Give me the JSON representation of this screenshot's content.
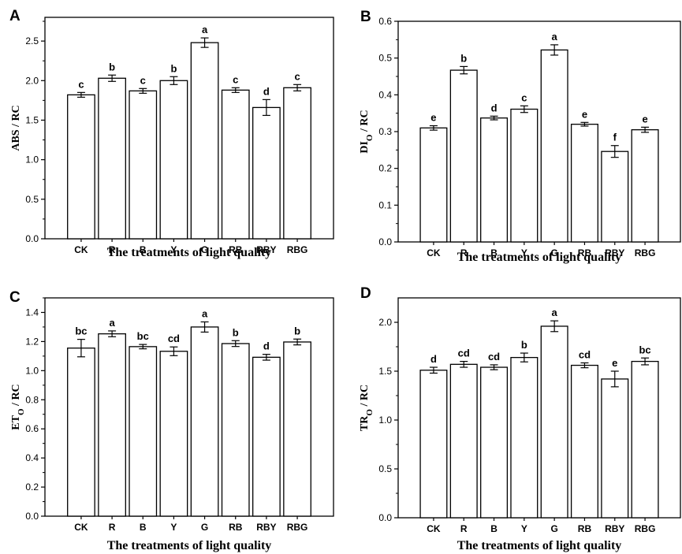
{
  "chart_data": [
    {
      "type": "bar",
      "panel": "A",
      "ylabel": {
        "main": "ABS / RC",
        "sub": ""
      },
      "xlabel": "The treatments of light quality",
      "ylim": [
        0,
        2.8
      ],
      "yticks": [
        "0.0",
        "0.5",
        "1.0",
        "1.5",
        "2.0",
        "2.5"
      ],
      "categories": [
        "CK",
        "R",
        "B",
        "Y",
        "G",
        "RB",
        "RBY",
        "RBG"
      ],
      "values": [
        1.82,
        2.03,
        1.87,
        2.0,
        2.48,
        1.88,
        1.66,
        1.91
      ],
      "errors": [
        0.03,
        0.04,
        0.03,
        0.05,
        0.06,
        0.03,
        0.1,
        0.04
      ],
      "significance": [
        "c",
        "b",
        "c",
        "b",
        "a",
        "c",
        "d",
        "c"
      ]
    },
    {
      "type": "bar",
      "panel": "B",
      "ylabel": {
        "main": "DI",
        "sub": "O",
        "suffix": " / RC"
      },
      "xlabel": "The treatments of light quality",
      "ylim": [
        0,
        0.6
      ],
      "yticks": [
        "0.0",
        "0.1",
        "0.2",
        "0.3",
        "0.4",
        "0.5",
        "0.6"
      ],
      "categories": [
        "CK",
        "R",
        "B",
        "Y",
        "G",
        "RB",
        "RBY",
        "RBG"
      ],
      "values": [
        0.31,
        0.467,
        0.337,
        0.361,
        0.522,
        0.32,
        0.246,
        0.305
      ],
      "errors": [
        0.006,
        0.01,
        0.005,
        0.009,
        0.014,
        0.005,
        0.016,
        0.007
      ],
      "significance": [
        "e",
        "b",
        "d",
        "c",
        "a",
        "e",
        "f",
        "e"
      ]
    },
    {
      "type": "bar",
      "panel": "C",
      "ylabel": {
        "main": "ET",
        "sub": "O",
        "suffix": " / RC"
      },
      "xlabel": "The treatments of light quality",
      "ylim": [
        0,
        1.5
      ],
      "yticks": [
        "0.0",
        "0.2",
        "0.4",
        "0.6",
        "0.8",
        "1.0",
        "1.2",
        "1.4"
      ],
      "categories": [
        "CK",
        "R",
        "B",
        "Y",
        "G",
        "RB",
        "RBY",
        "RBG"
      ],
      "values": [
        1.155,
        1.253,
        1.165,
        1.133,
        1.3,
        1.186,
        1.092,
        1.197
      ],
      "errors": [
        0.06,
        0.02,
        0.015,
        0.03,
        0.035,
        0.02,
        0.02,
        0.02
      ],
      "significance": [
        "bc",
        "a",
        "bc",
        "cd",
        "a",
        "b",
        "d",
        "b"
      ]
    },
    {
      "type": "bar",
      "panel": "D",
      "ylabel": {
        "main": "TR",
        "sub": "O",
        "suffix": " / RC"
      },
      "xlabel": "The treatments of light quality",
      "ylim": [
        0,
        2.25
      ],
      "yticks": [
        "0.0",
        "0.5",
        "1.0",
        "1.5",
        "2.0"
      ],
      "categories": [
        "CK",
        "R",
        "B",
        "Y",
        "G",
        "RB",
        "RBY",
        "RBG"
      ],
      "values": [
        1.51,
        1.57,
        1.54,
        1.64,
        1.96,
        1.56,
        1.42,
        1.6
      ],
      "errors": [
        0.03,
        0.03,
        0.025,
        0.045,
        0.055,
        0.025,
        0.08,
        0.035
      ],
      "significance": [
        "d",
        "cd",
        "cd",
        "b",
        "a",
        "cd",
        "e",
        "bc"
      ]
    }
  ]
}
